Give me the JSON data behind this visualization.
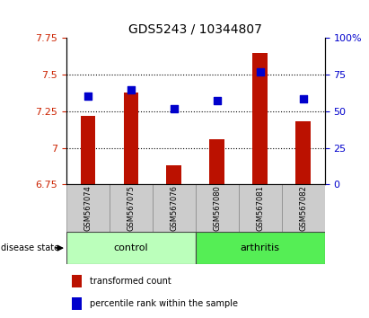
{
  "title": "GDS5243 / 10344807",
  "samples": [
    "GSM567074",
    "GSM567075",
    "GSM567076",
    "GSM567080",
    "GSM567081",
    "GSM567082"
  ],
  "red_values": [
    7.22,
    7.38,
    6.88,
    7.06,
    7.65,
    7.18
  ],
  "blue_values": [
    7.355,
    7.395,
    7.27,
    7.325,
    7.52,
    7.335
  ],
  "ylim": [
    6.75,
    7.75
  ],
  "yticks": [
    6.75,
    7.0,
    7.25,
    7.5,
    7.75
  ],
  "ytick_labels": [
    "6.75",
    "7",
    "7.25",
    "7.5",
    "7.75"
  ],
  "right_yticks": [
    0,
    25,
    50,
    75,
    100
  ],
  "right_ytick_labels": [
    "0",
    "25",
    "50",
    "75",
    "100%"
  ],
  "right_ylim": [
    0,
    100
  ],
  "bar_color": "#bb1100",
  "dot_color": "#0000cc",
  "control_count": 3,
  "arthritis_count": 3,
  "control_color": "#bbffbb",
  "arthritis_color": "#55ee55",
  "label_color_left": "#cc2200",
  "label_color_right": "#0000cc",
  "background_plot": "#ffffff",
  "background_labels": "#cccccc",
  "bar_width": 0.35,
  "dot_size": 30,
  "disease_state_label": "disease state",
  "control_label": "control",
  "arthritis_label": "arthritis",
  "legend_red": "transformed count",
  "legend_blue": "percentile rank within the sample",
  "hline_values": [
    7.0,
    7.25,
    7.5
  ]
}
